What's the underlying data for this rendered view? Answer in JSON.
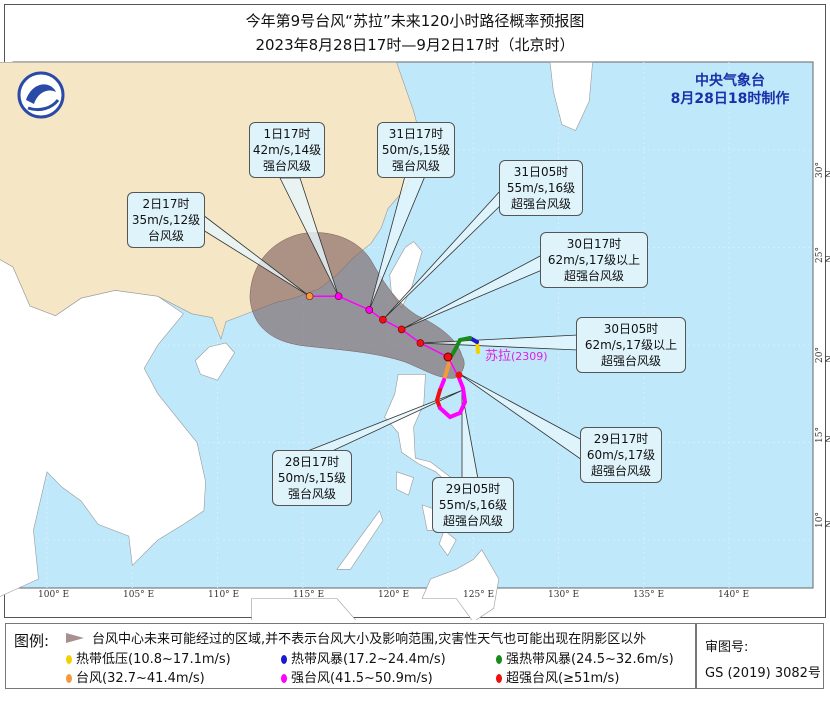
{
  "header": {
    "title": "今年第9号台风“苏拉”未来120小时路径概率预报图",
    "subtitle": "2023年8月28日17时—9月2日17时（北京时）"
  },
  "issuer": {
    "name": "中央气象台",
    "made_at": "8月28日18时制作"
  },
  "typhoon": {
    "name": "苏拉",
    "code": "(2309)"
  },
  "axes": {
    "lon_ticks": [
      "100° E",
      "105° E",
      "110° E",
      "115° E",
      "120° E",
      "125° E",
      "130° E",
      "135° E",
      "140° E"
    ],
    "lat_ticks": [
      "30° N",
      "25° N",
      "20° N",
      "15° N",
      "10° N"
    ]
  },
  "forecast_points": [
    {
      "time": "28日17时",
      "wind": "50m/s,15级",
      "grade": "强台风级",
      "lon": 123.5,
      "lat": 18.7,
      "color": "#ff00ff"
    },
    {
      "time": "29日05时",
      "wind": "55m/s,16级",
      "grade": "超强台风级",
      "lon": 123.4,
      "lat": 18.4,
      "color": "#ee1111"
    },
    {
      "time": "29日17时",
      "wind": "60m/s,17级",
      "grade": "超强台风级",
      "lon": 123.5,
      "lat": 19.1,
      "color": "#ee1111"
    },
    {
      "time": "30日05时",
      "wind": "62m/s,17级以上",
      "grade": "超强台风级",
      "lon": 121.9,
      "lat": 20.1,
      "color": "#ee1111"
    },
    {
      "time": "30日17时",
      "wind": "62m/s,17级以上",
      "grade": "超强台风级",
      "lon": 120.8,
      "lat": 20.8,
      "color": "#ee1111"
    },
    {
      "time": "31日05时",
      "wind": "55m/s,16级",
      "grade": "超强台风级",
      "lon": 119.7,
      "lat": 21.3,
      "color": "#ee1111"
    },
    {
      "time": "31日17时",
      "wind": "50m/s,15级",
      "grade": "强台风级",
      "lon": 118.9,
      "lat": 21.8,
      "color": "#ff00ff"
    },
    {
      "time": "1日17时",
      "wind": "42m/s,14级",
      "grade": "强台风级",
      "lon": 117.1,
      "lat": 22.5,
      "color": "#ff00ff"
    },
    {
      "time": "2日17时",
      "wind": "35m/s,12级",
      "grade": "台风级",
      "lon": 115.4,
      "lat": 22.5,
      "color": "#f59a3c"
    }
  ],
  "legend": {
    "title": "图例:",
    "cone_text": "台风中心未来可能经过的区域,并不表示台风大小及影响范围,灾害性天气也可能出现在阴影区以外",
    "items": [
      {
        "label": "热带低压(10.8~17.1m/s)",
        "color": "#f5d000"
      },
      {
        "label": "热带风暴(17.2~24.4m/s)",
        "color": "#1a1ad0"
      },
      {
        "label": "强热带风暴(24.5~32.6m/s)",
        "color": "#1a8a1a"
      },
      {
        "label": "台风(32.7~41.4m/s)",
        "color": "#f59a3c"
      },
      {
        "label": "强台风(41.5~50.9m/s)",
        "color": "#ff00ff"
      },
      {
        "label": "超强台风(≥51m/s)",
        "color": "#ee1111"
      }
    ],
    "approval_label": "审图号:",
    "approval_no": "GS (2019) 3082号"
  },
  "colors": {
    "sea": "#bfe8fa",
    "china": "#f5e6c6",
    "land": "#ffffff",
    "cone": "#8a6a6a",
    "track": "#ff00ff"
  }
}
